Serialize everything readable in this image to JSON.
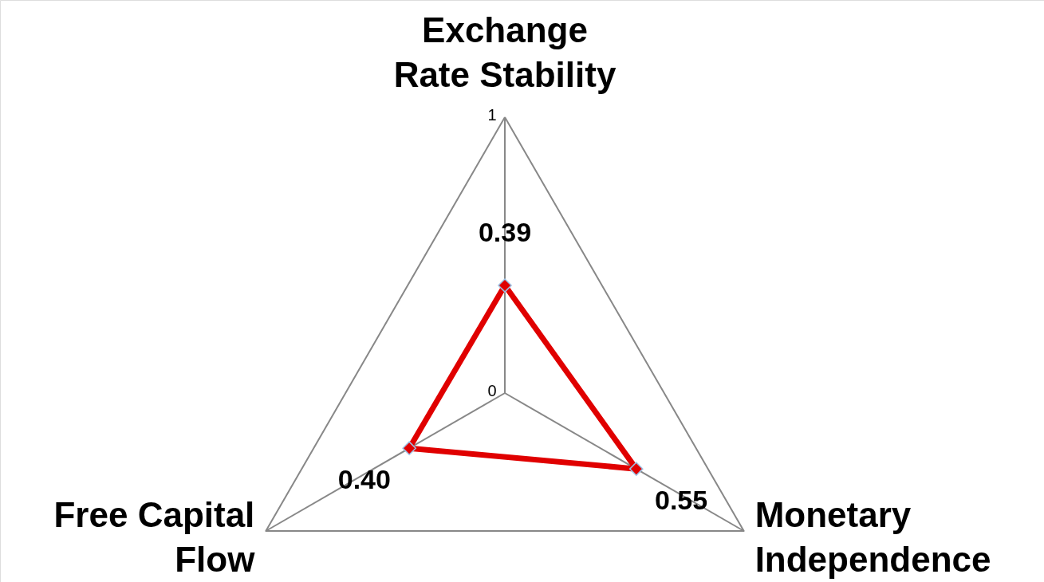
{
  "chart_data": {
    "type": "radar",
    "categories": [
      "Exchange\nRate Stability",
      "Monetary\nIndependence",
      "Free Capital\nFlow"
    ],
    "series": [
      {
        "color": "#e00000",
        "values": [
          0.39,
          0.55,
          0.4
        ],
        "value_labels": [
          "0.39",
          "0.55",
          "0.40"
        ]
      }
    ],
    "ylim": [
      0,
      1
    ],
    "yticks": [
      {
        "value": 0,
        "label": "0"
      },
      {
        "value": 1,
        "label": "1"
      }
    ],
    "grid": true,
    "marker": "diamond",
    "line_style": "solid"
  }
}
